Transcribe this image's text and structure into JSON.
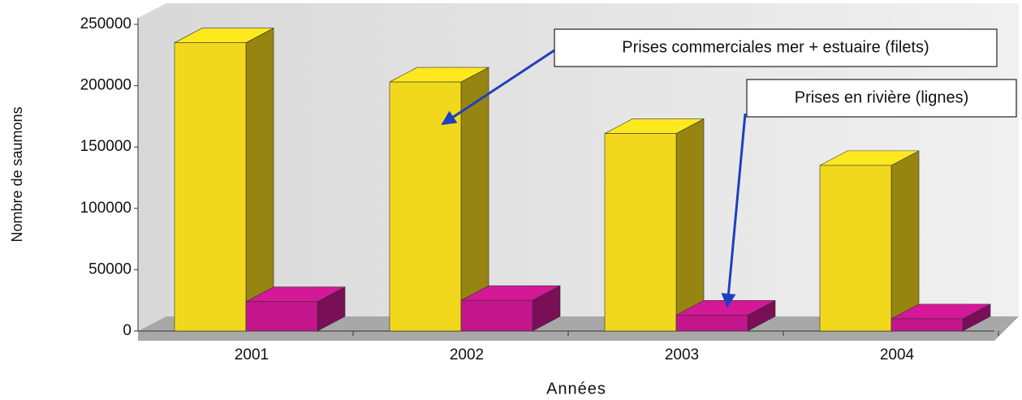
{
  "chart_data": {
    "type": "bar3d",
    "categories": [
      "2001",
      "2002",
      "2003",
      "2004"
    ],
    "series": [
      {
        "name": "Prises commerciales mer + estuaire (filets)",
        "color": "#f2d81c",
        "values": [
          235000,
          203000,
          161000,
          135000
        ]
      },
      {
        "name": "Prises en rivière (lignes)",
        "color": "#c4168c",
        "values": [
          24000,
          25000,
          13000,
          10000
        ]
      }
    ],
    "ylim": [
      0,
      250000
    ],
    "yticks": [
      0,
      50000,
      100000,
      150000,
      200000,
      250000
    ],
    "ylabel": "Nombre de saumons",
    "xlabel": "Années"
  }
}
